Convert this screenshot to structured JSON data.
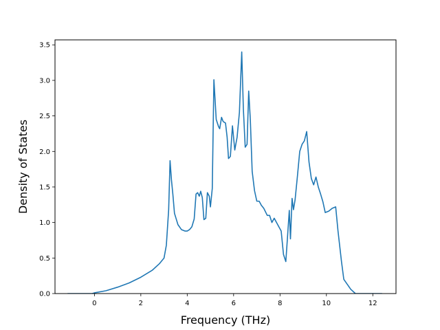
{
  "chart_data": {
    "type": "line",
    "title": "",
    "xlabel": "Frequency (THz)",
    "ylabel": "Density of States",
    "xlim": [
      -1.7,
      13.0
    ],
    "ylim": [
      0,
      3.57
    ],
    "xticks": [
      0,
      2,
      4,
      6,
      8,
      10,
      12
    ],
    "xtick_labels": [
      "0",
      "2",
      "4",
      "6",
      "8",
      "10",
      "12"
    ],
    "yticks": [
      0.0,
      0.5,
      1.0,
      1.5,
      2.0,
      2.5,
      3.0,
      3.5
    ],
    "ytick_labels": [
      "0.0",
      "0.5",
      "1.0",
      "1.5",
      "2.0",
      "2.5",
      "3.0",
      "3.5"
    ],
    "grid": false,
    "legend": "none",
    "series": [
      {
        "color": "#1f77b4",
        "x": [
          -1.16,
          -0.1,
          0.0,
          0.5,
          1.0,
          1.5,
          2.0,
          2.5,
          2.8,
          3.0,
          3.1,
          3.2,
          3.26,
          3.32,
          3.38,
          3.45,
          3.6,
          3.75,
          3.9,
          4.0,
          4.1,
          4.2,
          4.3,
          4.38,
          4.45,
          4.52,
          4.58,
          4.65,
          4.72,
          4.8,
          4.87,
          4.95,
          5.0,
          5.08,
          5.15,
          5.25,
          5.35,
          5.4,
          5.48,
          5.55,
          5.65,
          5.72,
          5.78,
          5.86,
          5.95,
          6.05,
          6.15,
          6.25,
          6.35,
          6.42,
          6.5,
          6.58,
          6.65,
          6.72,
          6.8,
          6.9,
          7.0,
          7.1,
          7.2,
          7.3,
          7.45,
          7.55,
          7.65,
          7.75,
          7.85,
          7.95,
          8.05,
          8.15,
          8.25,
          8.32,
          8.4,
          8.45,
          8.52,
          8.58,
          8.65,
          8.75,
          8.85,
          8.95,
          9.05,
          9.15,
          9.25,
          9.35,
          9.45,
          9.55,
          9.65,
          9.75,
          9.85,
          9.95,
          10.1,
          10.25,
          10.4,
          10.5,
          10.65,
          10.75,
          10.9,
          11.05,
          11.15,
          11.25,
          12.4
        ],
        "y": [
          0.0,
          0.0,
          0.01,
          0.04,
          0.09,
          0.15,
          0.23,
          0.33,
          0.42,
          0.5,
          0.68,
          1.18,
          1.87,
          1.6,
          1.4,
          1.13,
          0.97,
          0.9,
          0.88,
          0.88,
          0.9,
          0.94,
          1.05,
          1.4,
          1.42,
          1.37,
          1.44,
          1.35,
          1.04,
          1.06,
          1.42,
          1.37,
          1.22,
          1.48,
          3.01,
          2.45,
          2.35,
          2.32,
          2.48,
          2.42,
          2.4,
          2.2,
          1.9,
          1.93,
          2.36,
          2.02,
          2.2,
          2.55,
          3.4,
          2.6,
          2.06,
          2.1,
          2.85,
          2.45,
          1.72,
          1.45,
          1.3,
          1.3,
          1.24,
          1.2,
          1.1,
          1.1,
          1.0,
          1.06,
          1.0,
          0.94,
          0.88,
          0.55,
          0.45,
          0.78,
          1.17,
          0.77,
          1.34,
          1.18,
          1.32,
          1.65,
          2.0,
          2.1,
          2.15,
          2.28,
          1.85,
          1.62,
          1.53,
          1.64,
          1.5,
          1.4,
          1.29,
          1.14,
          1.16,
          1.2,
          1.22,
          0.88,
          0.45,
          0.2,
          0.13,
          0.06,
          0.03,
          0.0,
          0.0
        ]
      }
    ]
  }
}
